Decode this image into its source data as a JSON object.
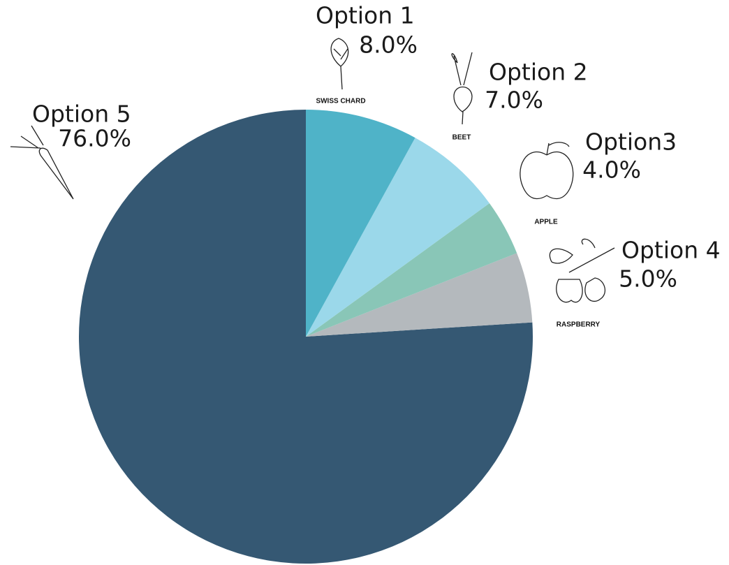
{
  "chart_data": {
    "type": "pie",
    "categories": [
      "Option 1",
      "Option 2",
      "Option3",
      "Option 4",
      "Option 5"
    ],
    "values": [
      8,
      7,
      4,
      5,
      76
    ],
    "value_labels": [
      "8.0%",
      "7.0%",
      "4.0%",
      "5.0%",
      "76.0%"
    ],
    "colors": [
      "#4fb3c8",
      "#9bd8ea",
      "#89c6b7",
      "#b4b9bd",
      "#355873"
    ],
    "captions": [
      "SWISS CHARD",
      "BEET",
      "APPLE",
      "RASPBERRY",
      null
    ]
  }
}
